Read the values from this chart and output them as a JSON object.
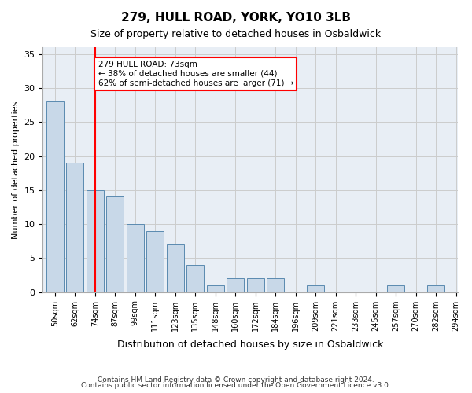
{
  "title1": "279, HULL ROAD, YORK, YO10 3LB",
  "title2": "Size of property relative to detached houses in Osbaldwick",
  "xlabel": "Distribution of detached houses by size in Osbaldwick",
  "ylabel": "Number of detached properties",
  "bar_values": [
    28,
    19,
    15,
    14,
    10,
    9,
    7,
    4,
    1,
    2,
    2,
    2,
    0,
    1,
    0,
    0,
    0,
    1,
    0,
    1
  ],
  "bar_labels": [
    "50sqm",
    "62sqm",
    "74sqm",
    "87sqm",
    "99sqm",
    "111sqm",
    "123sqm",
    "135sqm",
    "148sqm",
    "160sqm",
    "172sqm",
    "184sqm",
    "196sqm",
    "209sqm",
    "221sqm",
    "233sqm",
    "245sqm",
    "257sqm",
    "270sqm",
    "282sqm"
  ],
  "extra_label": "294sqm",
  "bar_color": "#c8d8e8",
  "bar_edge_color": "#5a8ab0",
  "grid_color": "#cccccc",
  "bg_color": "#e8eef5",
  "red_line_x": 2,
  "annotation_box_text": "279 HULL ROAD: 73sqm\n← 38% of detached houses are smaller (44)\n62% of semi-detached houses are larger (71) →",
  "annotation_box_color": "white",
  "annotation_box_edge": "red",
  "footer1": "Contains HM Land Registry data © Crown copyright and database right 2024.",
  "footer2": "Contains public sector information licensed under the Open Government Licence v3.0.",
  "ylim": [
    0,
    36
  ],
  "yticks": [
    0,
    5,
    10,
    15,
    20,
    25,
    30,
    35
  ]
}
